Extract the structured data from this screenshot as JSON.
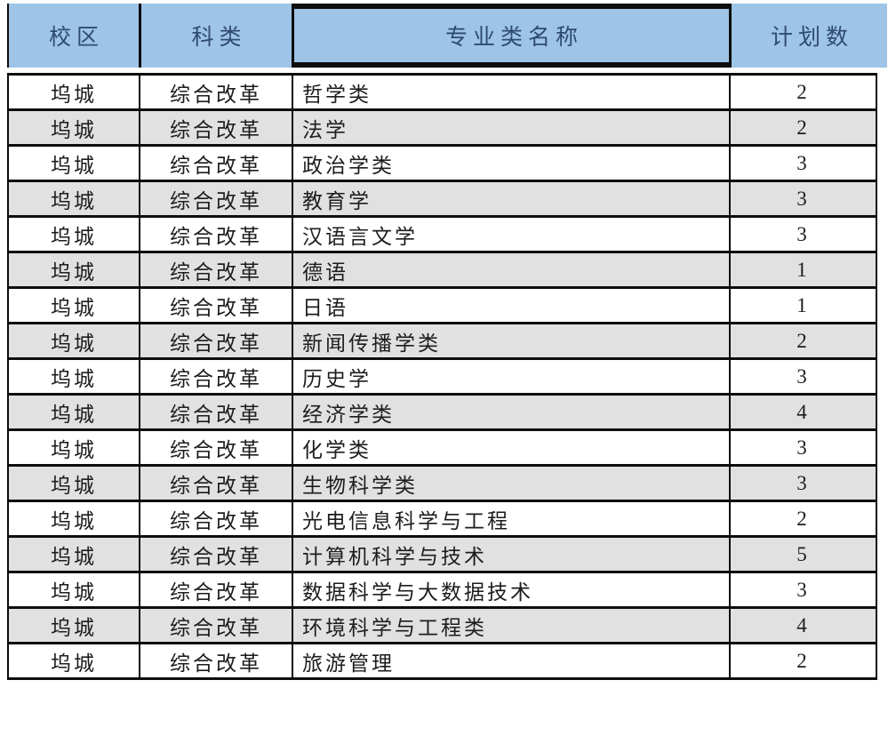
{
  "header": {
    "columns": [
      "校区",
      "科类",
      "专业类名称",
      "计划数"
    ]
  },
  "rows": [
    {
      "campus": "坞城",
      "track": "综合改革",
      "major": "哲学类",
      "plan": "2"
    },
    {
      "campus": "坞城",
      "track": "综合改革",
      "major": "法学",
      "plan": "2"
    },
    {
      "campus": "坞城",
      "track": "综合改革",
      "major": "政治学类",
      "plan": "3"
    },
    {
      "campus": "坞城",
      "track": "综合改革",
      "major": "教育学",
      "plan": "3"
    },
    {
      "campus": "坞城",
      "track": "综合改革",
      "major": "汉语言文学",
      "plan": "3"
    },
    {
      "campus": "坞城",
      "track": "综合改革",
      "major": "德语",
      "plan": "1"
    },
    {
      "campus": "坞城",
      "track": "综合改革",
      "major": "日语",
      "plan": "1"
    },
    {
      "campus": "坞城",
      "track": "综合改革",
      "major": "新闻传播学类",
      "plan": "2"
    },
    {
      "campus": "坞城",
      "track": "综合改革",
      "major": "历史学",
      "plan": "3"
    },
    {
      "campus": "坞城",
      "track": "综合改革",
      "major": "经济学类",
      "plan": "4"
    },
    {
      "campus": "坞城",
      "track": "综合改革",
      "major": "化学类",
      "plan": "3"
    },
    {
      "campus": "坞城",
      "track": "综合改革",
      "major": "生物科学类",
      "plan": "3"
    },
    {
      "campus": "坞城",
      "track": "综合改革",
      "major": "光电信息科学与工程",
      "plan": "2"
    },
    {
      "campus": "坞城",
      "track": "综合改革",
      "major": "计算机科学与技术",
      "plan": "5"
    },
    {
      "campus": "坞城",
      "track": "综合改革",
      "major": "数据科学与大数据技术",
      "plan": "3"
    },
    {
      "campus": "坞城",
      "track": "综合改革",
      "major": "环境科学与工程类",
      "plan": "4"
    },
    {
      "campus": "坞城",
      "track": "综合改革",
      "major": "旅游管理",
      "plan": "2"
    }
  ],
  "colors": {
    "header_bg": "#9EC4E7",
    "header_text": "#2F4A73",
    "row_alt_bg": "#E1E1E1",
    "border": "#0D0D0D"
  }
}
